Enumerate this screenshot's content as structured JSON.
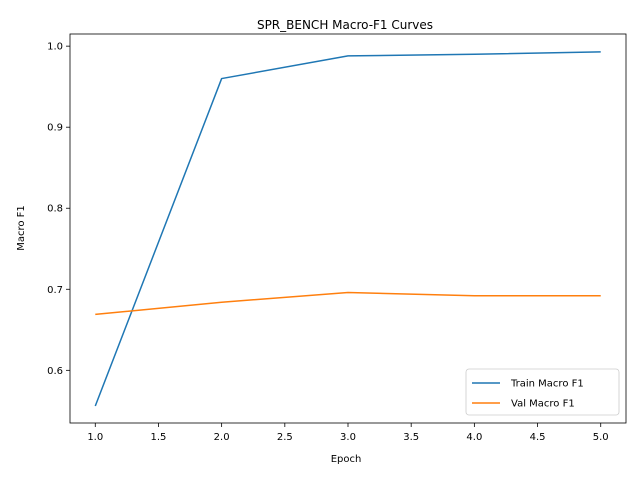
{
  "chart_data": {
    "type": "line",
    "title": "SPR_BENCH Macro-F1 Curves",
    "xlabel": "Epoch",
    "ylabel": "Macro F1",
    "x": [
      1,
      2,
      3,
      4,
      5
    ],
    "xlim": [
      0.8,
      5.2
    ],
    "ylim": [
      0.535,
      1.015
    ],
    "xticks": [
      "1.0",
      "1.5",
      "2.0",
      "2.5",
      "3.0",
      "3.5",
      "4.0",
      "4.5",
      "5.0"
    ],
    "yticks": [
      "0.6",
      "0.7",
      "0.8",
      "0.9",
      "1.0"
    ],
    "grid": false,
    "legend_position": "lower-right",
    "series": [
      {
        "name": "Train Macro F1",
        "color": "#1f77b4",
        "values": [
          0.556,
          0.96,
          0.988,
          0.99,
          0.993
        ]
      },
      {
        "name": "Val Macro F1",
        "color": "#ff7f0e",
        "values": [
          0.669,
          0.684,
          0.696,
          0.692,
          0.692
        ]
      }
    ]
  }
}
